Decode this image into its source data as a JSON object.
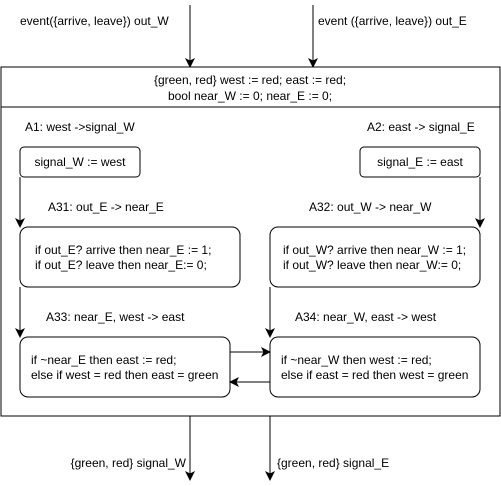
{
  "inputs": {
    "west_event": "event({arrive, leave}) out_W",
    "east_event": "event ({arrive, leave}) out_E"
  },
  "outputs": {
    "signal_w": "{green, red} signal_W",
    "signal_e": "{green, red} signal_E"
  },
  "declarations": {
    "line1": "{green, red} west := red; east := red;",
    "line2": "bool near_W := 0; near_E := 0;"
  },
  "labels": {
    "a1": "A1: west ->signal_W",
    "a2": "A2: east -> signal_E",
    "a31": "A31: out_E -> near_E",
    "a32": "A32: out_W -> near_W",
    "a33": "A33: near_E, west -> east",
    "a34": "A34: near_W, east -> west"
  },
  "boxes": {
    "a1": {
      "line1": "signal_W := west"
    },
    "a2": {
      "line1": "signal_E := east"
    },
    "a31": {
      "line1": "if out_E? arrive then near_E := 1;",
      "line2": "if out_E? leave then near_E:= 0;"
    },
    "a32": {
      "line1": "if out_W? arrive then near_W := 1;",
      "line2": "if out_W? leave then near_W:= 0;"
    },
    "a33": {
      "line1": "if ~near_E then east := red;",
      "line2": "else if west = red then east = green"
    },
    "a34": {
      "line1": "if ~near_W then west := red;",
      "line2": "else if east = red then west = green"
    }
  },
  "colors": {
    "stroke": "#000000",
    "fill": "#ffffff",
    "text": "#000000"
  }
}
